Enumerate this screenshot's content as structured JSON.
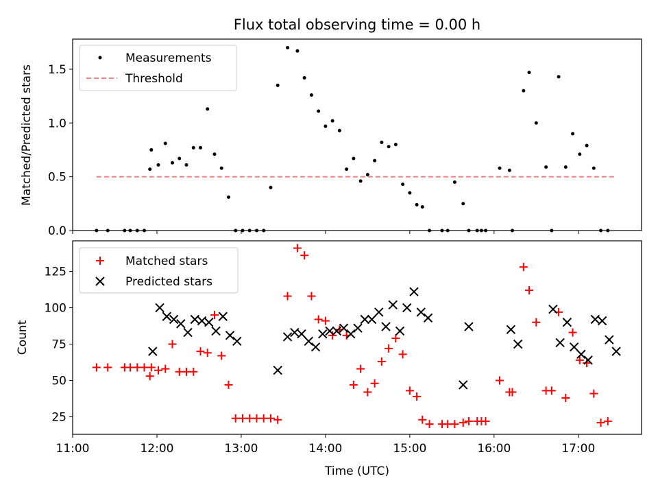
{
  "chart_data": [
    {
      "type": "scatter",
      "title": "Flux total observing time = 0.00 h",
      "xlabel": "",
      "ylabel": "Matched/Predicted stars",
      "xlim": [
        "11:00",
        "17:45"
      ],
      "ylim": [
        0,
        1.78
      ],
      "yticks": [
        0.0,
        0.5,
        1.0,
        1.5
      ],
      "ytick_labels": [
        "0.0",
        "0.5",
        "1.0",
        "1.5"
      ],
      "legend_position": "top-left",
      "series": [
        {
          "name": "Measurements",
          "kind": "scatter",
          "marker": "dot",
          "color": "#000000",
          "x": [
            "11:17",
            "11:25",
            "11:37",
            "11:41",
            "11:46",
            "11:51",
            "11:56",
            "11:55",
            "12:01",
            "12:06",
            "12:11",
            "12:16",
            "12:21",
            "12:26",
            "12:31",
            "12:36",
            "12:41",
            "12:46",
            "12:51",
            "12:56",
            "13:01",
            "13:06",
            "13:11",
            "13:16",
            "13:21",
            "13:26",
            "13:33",
            "13:40",
            "13:45",
            "13:50",
            "13:55",
            "14:00",
            "14:05",
            "14:10",
            "14:15",
            "14:20",
            "14:25",
            "14:30",
            "14:35",
            "14:40",
            "14:45",
            "14:50",
            "14:55",
            "15:00",
            "15:05",
            "15:09",
            "15:14",
            "15:23",
            "15:27",
            "15:32",
            "15:38",
            "15:42",
            "15:48",
            "15:51",
            "15:54",
            "16:04",
            "16:11",
            "16:13",
            "16:21",
            "16:25",
            "16:30",
            "16:37",
            "16:41",
            "16:46",
            "16:51",
            "16:56",
            "17:01",
            "17:06",
            "17:11",
            "17:16",
            "17:21"
          ],
          "y": [
            0.0,
            0.0,
            0.0,
            0.0,
            0.0,
            0.0,
            0.75,
            0.57,
            0.61,
            0.81,
            0.63,
            0.67,
            0.61,
            0.77,
            0.77,
            1.13,
            0.71,
            0.58,
            0.31,
            0.0,
            0.0,
            0.0,
            0.0,
            0.0,
            0.4,
            1.35,
            1.7,
            1.67,
            1.42,
            1.26,
            1.11,
            0.97,
            1.02,
            0.93,
            0.57,
            0.67,
            0.46,
            0.52,
            0.65,
            0.82,
            0.78,
            0.8,
            0.43,
            0.35,
            0.24,
            0.22,
            0.0,
            0.0,
            0.0,
            0.45,
            0.25,
            0.0,
            0.0,
            0.0,
            0.0,
            0.58,
            0.56,
            0.0,
            1.3,
            1.47,
            1.0,
            0.59,
            0.0,
            1.43,
            0.59,
            0.9,
            0.71,
            0.79,
            0.58,
            0.0,
            0.0
          ]
        },
        {
          "name": "Threshold",
          "kind": "line",
          "style": "dashed",
          "color": "#f08080",
          "x": [
            "11:17",
            "17:26"
          ],
          "y": [
            0.5,
            0.5
          ]
        }
      ]
    },
    {
      "type": "scatter",
      "title": "",
      "xlabel": "Time (UTC)",
      "ylabel": "Count",
      "xlim": [
        "11:00",
        "17:45"
      ],
      "ylim": [
        13,
        146
      ],
      "yticks": [
        25,
        50,
        75,
        100,
        125
      ],
      "ytick_labels": [
        "25",
        "50",
        "75",
        "100",
        "125"
      ],
      "xticks": [
        "11:00",
        "12:00",
        "13:00",
        "14:00",
        "15:00",
        "16:00",
        "17:00"
      ],
      "xtick_labels": [
        "11:00",
        "12:00",
        "13:00",
        "14:00",
        "15:00",
        "16:00",
        "17:00"
      ],
      "legend_position": "top-left",
      "series": [
        {
          "name": "Matched stars",
          "kind": "scatter",
          "marker": "plus",
          "color": "#ff0000",
          "x": [
            "11:17",
            "11:25",
            "11:37",
            "11:41",
            "11:46",
            "11:51",
            "11:56",
            "11:55",
            "12:01",
            "12:06",
            "12:11",
            "12:16",
            "12:21",
            "12:26",
            "12:31",
            "12:36",
            "12:41",
            "12:46",
            "12:51",
            "12:56",
            "13:01",
            "13:06",
            "13:11",
            "13:16",
            "13:21",
            "13:26",
            "13:33",
            "13:40",
            "13:45",
            "13:50",
            "13:55",
            "14:00",
            "14:05",
            "14:10",
            "14:15",
            "14:20",
            "14:25",
            "14:30",
            "14:35",
            "14:40",
            "14:45",
            "14:50",
            "14:55",
            "15:00",
            "15:05",
            "15:09",
            "15:14",
            "15:23",
            "15:27",
            "15:32",
            "15:38",
            "15:42",
            "15:48",
            "15:51",
            "15:54",
            "16:04",
            "16:11",
            "16:13",
            "16:21",
            "16:25",
            "16:30",
            "16:37",
            "16:41",
            "16:46",
            "16:51",
            "16:56",
            "17:01",
            "17:06",
            "17:11",
            "17:16",
            "17:21"
          ],
          "y": [
            59,
            59,
            59,
            59,
            59,
            59,
            59,
            53,
            57,
            58,
            75,
            56,
            56,
            56,
            70,
            69,
            95,
            67,
            47,
            24,
            24,
            24,
            24,
            24,
            24,
            23,
            108,
            141,
            136,
            108,
            92,
            91,
            81,
            85,
            81,
            47,
            58,
            42,
            48,
            63,
            72,
            79,
            68,
            43,
            39,
            23,
            20,
            20,
            20,
            20,
            21,
            22,
            22,
            22,
            22,
            50,
            42,
            42,
            128,
            112,
            90,
            43,
            43,
            97,
            38,
            83,
            64,
            62,
            41,
            21,
            22
          ]
        },
        {
          "name": "Predicted stars",
          "kind": "scatter",
          "marker": "x",
          "color": "#000000",
          "x": [
            "11:57",
            "12:02",
            "12:07",
            "12:12",
            "12:17",
            "12:22",
            "12:27",
            "12:32",
            "12:37",
            "12:42",
            "12:47",
            "12:52",
            "12:57",
            "13:26",
            "13:33",
            "13:38",
            "13:43",
            "13:48",
            "13:53",
            "13:58",
            "14:03",
            "14:08",
            "14:13",
            "14:18",
            "14:23",
            "14:28",
            "14:33",
            "14:38",
            "14:43",
            "14:48",
            "14:53",
            "14:58",
            "15:03",
            "15:08",
            "15:13",
            "15:38",
            "15:42",
            "16:12",
            "16:17",
            "16:42",
            "16:47",
            "16:52",
            "16:57",
            "17:02",
            "17:07",
            "17:12",
            "17:17",
            "17:22",
            "17:27"
          ],
          "y": [
            70,
            100,
            94,
            92,
            89,
            83,
            92,
            91,
            90,
            84,
            94,
            81,
            77,
            57,
            80,
            83,
            82,
            77,
            73,
            82,
            84,
            84,
            86,
            82,
            86,
            92,
            92,
            97,
            87,
            102,
            84,
            100,
            111,
            97,
            93,
            47,
            87,
            85,
            75,
            99,
            76,
            90,
            73,
            68,
            64,
            92,
            91,
            78,
            70
          ]
        }
      ]
    }
  ]
}
